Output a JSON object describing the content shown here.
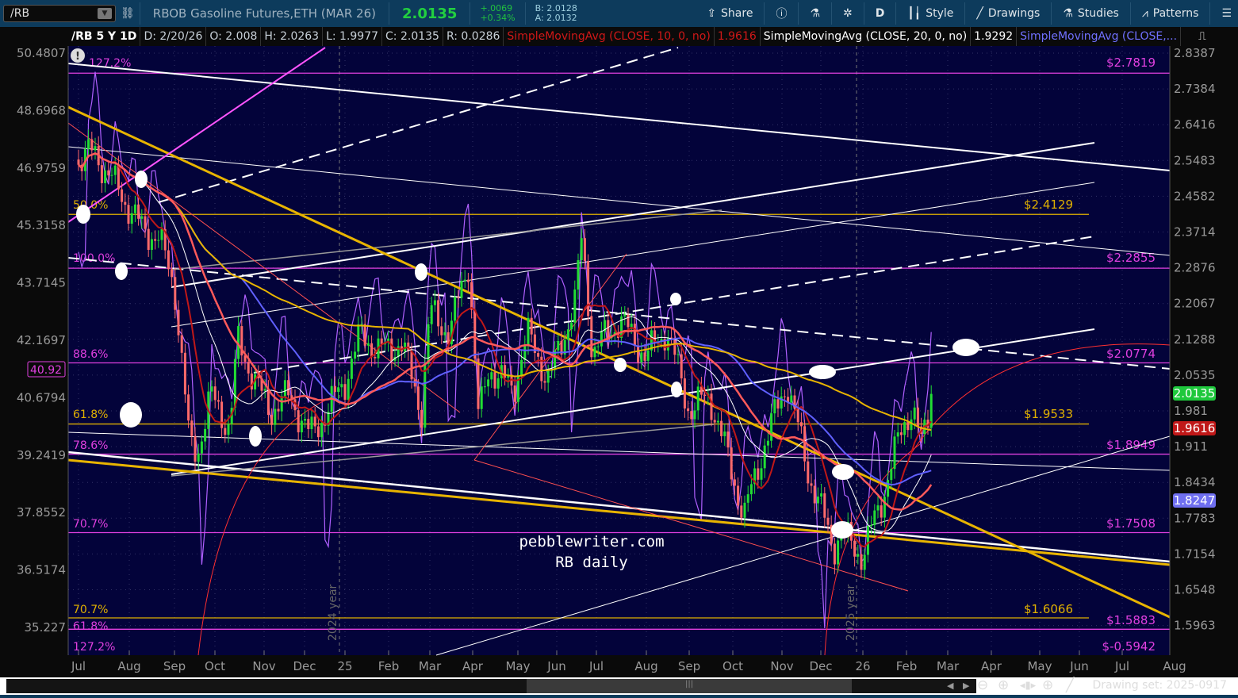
{
  "toolbar": {
    "symbol": "/RB",
    "description": "RBOB Gasoline Futures,ETH (MAR 26)",
    "last": "2.0135",
    "change": "+.0069",
    "change_pct": "+0.34%",
    "bid": "B: 2.0128",
    "ask": "A: 2.0132",
    "buttons": [
      {
        "label": "Share",
        "icon": "share-icon"
      },
      {
        "label": "",
        "icon": "info-icon"
      },
      {
        "label": "",
        "icon": "flask-icon"
      },
      {
        "label": "",
        "icon": "gear-icon"
      },
      {
        "label": "D",
        "icon": ""
      },
      {
        "label": "Style",
        "icon": "candle-icon"
      },
      {
        "label": "Drawings",
        "icon": "pen-line-icon"
      },
      {
        "label": "Studies",
        "icon": "flask-icon"
      },
      {
        "label": "Patterns",
        "icon": "patterns-icon"
      },
      {
        "label": "",
        "icon": "menu-icon"
      }
    ]
  },
  "header": {
    "title": "/RB 5 Y 1D",
    "date": "D: 2/20/26",
    "open": "O: 2.008",
    "high": "H: 2.0263",
    "low": "L: 1.9977",
    "close": "C: 2.0135",
    "range": "R: 0.0286",
    "studies": [
      {
        "label": "SimpleMovingAvg (CLOSE, 10, 0, no)",
        "value": "1.9616",
        "color": "#d01818"
      },
      {
        "label": "SimpleMovingAvg (CLOSE, 20, 0, no)",
        "value": "1.9292",
        "color": "#ffffff"
      },
      {
        "label": "SimpleMovingAvg (CLOSE,...",
        "value": "",
        "color": "#7070ff"
      }
    ]
  },
  "chart_data": {
    "type": "candlestick",
    "scale": "log",
    "grid": true,
    "right_axis_ticks": [
      "2.8387",
      "2.7384",
      "2.6416",
      "2.5483",
      "2.4582",
      "2.3714",
      "2.2876",
      "2.2067",
      "2.1288",
      "2.0535",
      "1.981",
      "1.911",
      "1.8434",
      "1.7783",
      "1.7154",
      "1.6548",
      "1.5963"
    ],
    "left_axis_ticks": [
      "50.4807",
      "48.6968",
      "46.9759",
      "45.3158",
      "43.7145",
      "42.1697",
      "40.6794",
      "39.2419",
      "37.8552",
      "36.5174",
      "35.227"
    ],
    "x_ticks": [
      "Jul",
      "Aug",
      "Sep",
      "Oct",
      "Nov",
      "Dec",
      "25",
      "Feb",
      "Mar",
      "Apr",
      "May",
      "Jun",
      "Jul",
      "Aug",
      "Sep",
      "Oct",
      "Nov",
      "Dec",
      "26",
      "Feb",
      "Mar",
      "Apr",
      "May",
      "Jun",
      "Jul",
      "Aug"
    ],
    "year_labels": [
      "2024 year",
      "2025 year"
    ],
    "price_tags": [
      {
        "value": "2.0135",
        "color": "#1ec83c"
      },
      {
        "value": "1.9616",
        "color": "#c01818"
      },
      {
        "value": "1.8247",
        "color": "#6f6ff0"
      }
    ],
    "left_tag": {
      "value": "40.92",
      "color": "#e040e0"
    },
    "close": [
      [
        "2024-07-01",
        2.55
      ],
      [
        "2024-07-10",
        2.57
      ],
      [
        "2024-07-25",
        2.47
      ],
      [
        "2024-08-10",
        2.375
      ],
      [
        "2024-08-20",
        2.36
      ],
      [
        "2024-09-01",
        2.245
      ],
      [
        "2024-09-12",
        1.914
      ],
      [
        "2024-09-18",
        1.9
      ],
      [
        "2024-09-28",
        2.01
      ],
      [
        "2024-10-10",
        1.945
      ],
      [
        "2024-10-15",
        2.123
      ],
      [
        "2024-10-28",
        2.02
      ],
      [
        "2024-11-05",
        1.98
      ],
      [
        "2024-11-20",
        2.01
      ],
      [
        "2024-12-05",
        1.93
      ],
      [
        "2024-12-18",
        1.98
      ],
      [
        "2025-01-01",
        2.04
      ],
      [
        "2025-01-12",
        2.14
      ],
      [
        "2025-01-25",
        2.1
      ],
      [
        "2025-02-10",
        2.12
      ],
      [
        "2025-02-25",
        1.98
      ],
      [
        "2025-03-01",
        2.19
      ],
      [
        "2025-03-15",
        2.14
      ],
      [
        "2025-03-28",
        2.3
      ],
      [
        "2025-04-05",
        1.96
      ],
      [
        "2025-04-12",
        2.07
      ],
      [
        "2025-04-28",
        2.02
      ],
      [
        "2025-05-08",
        2.14
      ],
      [
        "2025-05-25",
        2.04
      ],
      [
        "2025-06-15",
        2.21
      ],
      [
        "2025-06-20",
        2.36
      ],
      [
        "2025-06-28",
        2.1
      ],
      [
        "2025-07-15",
        2.17
      ],
      [
        "2025-08-01",
        2.09
      ],
      [
        "2025-08-15",
        2.15
      ],
      [
        "2025-09-01",
        1.98
      ],
      [
        "2025-09-15",
        2.01
      ],
      [
        "2025-10-01",
        1.854
      ],
      [
        "2025-10-08",
        1.78
      ],
      [
        "2025-10-20",
        1.91
      ],
      [
        "2025-11-05",
        2.04
      ],
      [
        "2025-11-10",
        1.98
      ],
      [
        "2025-11-22",
        1.854
      ],
      [
        "2025-12-10",
        1.726
      ],
      [
        "2025-12-15",
        1.75
      ],
      [
        "2026-01-01",
        1.71
      ],
      [
        "2026-01-15",
        1.82
      ],
      [
        "2026-01-28",
        1.945
      ],
      [
        "2026-02-05",
        1.99
      ],
      [
        "2026-02-12",
        1.91
      ],
      [
        "2026-02-20",
        2.0135
      ]
    ],
    "levels": [
      {
        "price": 2.7819,
        "label": "$2.7819",
        "pct": "127.2%",
        "color": "#e040e0"
      },
      {
        "price": 2.4129,
        "label": "$2.4129",
        "pct": "50.0%",
        "color": "#e0b000"
      },
      {
        "price": 2.2855,
        "label": "$2.2855",
        "pct": "100.0%",
        "color": "#e040e0"
      },
      {
        "price": 2.0774,
        "label": "$2.0774",
        "pct": "88.6%",
        "color": "#e040e0"
      },
      {
        "price": 1.9533,
        "label": "$1.9533",
        "pct": "61.8%",
        "color": "#e0b000"
      },
      {
        "price": 1.8949,
        "label": "$1.8949",
        "pct": "78.6%",
        "color": "#e040e0"
      },
      {
        "price": 1.7508,
        "label": "$1.7508",
        "pct": "70.7%",
        "color": "#e040e0"
      },
      {
        "price": 1.6066,
        "label": "$1.6066",
        "pct": "70.7%",
        "color": "#e0b000"
      },
      {
        "price": 1.5883,
        "label": "$1.5883",
        "pct": "61.8%",
        "color": "#e040e0"
      },
      {
        "price": null,
        "label": "$-0.5942",
        "pct": "127.2%",
        "color": "#e040e0"
      }
    ],
    "watermark": [
      "pebblewriter.com",
      "RB daily"
    ]
  },
  "footer": {
    "drawing_set": "Drawing set: 2025-0917"
  }
}
